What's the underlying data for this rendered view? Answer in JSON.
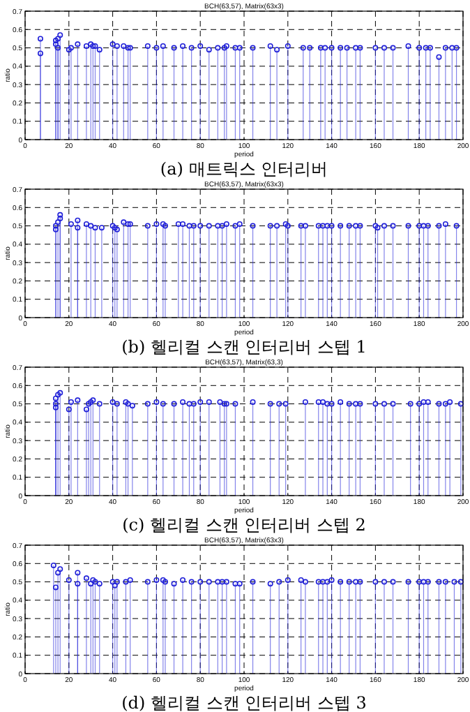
{
  "chart_data": [
    {
      "type": "lollipop",
      "title": "BCH(63,57), Matrix(63x3)",
      "xlabel": "period",
      "ylabel": "ratio",
      "annotations": [
        "(a) 매트릭스 인터리버"
      ],
      "color": "#1f1fd8",
      "marker": "circle",
      "grid": true,
      "xlim": [
        0,
        200
      ],
      "ylim": [
        0,
        0.7
      ],
      "xticks": [
        0,
        20,
        40,
        60,
        80,
        100,
        120,
        140,
        160,
        180,
        200
      ],
      "yticks": [
        0,
        0.1,
        0.2,
        0.3,
        0.4,
        0.5,
        0.6,
        0.7
      ],
      "x": [
        7,
        7,
        14,
        15,
        16,
        14,
        15,
        20,
        21,
        24,
        28,
        30,
        31,
        32,
        34,
        40,
        42,
        45,
        47,
        48,
        56,
        60,
        63,
        68,
        72,
        76,
        80,
        84,
        88,
        91,
        92,
        96,
        98,
        104,
        112,
        115,
        120,
        127,
        130,
        135,
        137,
        140,
        144,
        147,
        151,
        153,
        160,
        164,
        168,
        175,
        180,
        183,
        185,
        189,
        192,
        195,
        197
      ],
      "values": [
        0.55,
        0.47,
        0.54,
        0.55,
        0.57,
        0.52,
        0.5,
        0.49,
        0.5,
        0.52,
        0.51,
        0.52,
        0.51,
        0.51,
        0.49,
        0.52,
        0.51,
        0.51,
        0.5,
        0.5,
        0.51,
        0.5,
        0.51,
        0.5,
        0.51,
        0.5,
        0.51,
        0.49,
        0.5,
        0.5,
        0.51,
        0.5,
        0.5,
        0.5,
        0.51,
        0.49,
        0.51,
        0.5,
        0.5,
        0.5,
        0.5,
        0.5,
        0.5,
        0.5,
        0.5,
        0.5,
        0.5,
        0.5,
        0.5,
        0.51,
        0.5,
        0.5,
        0.5,
        0.45,
        0.5,
        0.5,
        0.5
      ]
    },
    {
      "type": "lollipop",
      "title": "BCH(63,57), Matrix(63x3)",
      "xlabel": "period",
      "ylabel": "ratio",
      "annotations": [
        "(b) 헬리컬 스캔 인터리버 스텝 1"
      ],
      "color": "#1f1fd8",
      "marker": "circle",
      "grid": true,
      "xlim": [
        0,
        200
      ],
      "ylim": [
        0,
        0.7
      ],
      "xticks": [
        0,
        20,
        40,
        60,
        80,
        100,
        120,
        140,
        160,
        180,
        200
      ],
      "yticks": [
        0,
        0.1,
        0.2,
        0.3,
        0.4,
        0.5,
        0.6,
        0.7
      ],
      "x": [
        14,
        14,
        15,
        16,
        16,
        21,
        24,
        24,
        28,
        30,
        32,
        35,
        40,
        41,
        42,
        45,
        47,
        48,
        56,
        60,
        63,
        64,
        70,
        72,
        75,
        77,
        80,
        84,
        88,
        90,
        92,
        96,
        98,
        104,
        112,
        115,
        119,
        120,
        126,
        128,
        134,
        136,
        138,
        140,
        144,
        148,
        151,
        153,
        160,
        161,
        164,
        168,
        175,
        180,
        182,
        184,
        189,
        192,
        197
      ],
      "values": [
        0.48,
        0.5,
        0.52,
        0.54,
        0.56,
        0.51,
        0.53,
        0.49,
        0.51,
        0.5,
        0.49,
        0.49,
        0.5,
        0.49,
        0.48,
        0.52,
        0.51,
        0.51,
        0.5,
        0.51,
        0.51,
        0.5,
        0.51,
        0.51,
        0.5,
        0.5,
        0.5,
        0.5,
        0.5,
        0.5,
        0.51,
        0.5,
        0.51,
        0.5,
        0.5,
        0.5,
        0.51,
        0.5,
        0.5,
        0.5,
        0.5,
        0.5,
        0.5,
        0.5,
        0.5,
        0.5,
        0.5,
        0.5,
        0.5,
        0.49,
        0.5,
        0.5,
        0.5,
        0.5,
        0.5,
        0.5,
        0.5,
        0.51,
        0.5
      ]
    },
    {
      "type": "lollipop",
      "title": "BCH(63,57), Matrix(63,3)",
      "xlabel": "period",
      "ylabel": "ratio",
      "annotations": [
        "(c) 헬리컬 스캔 인터리버 스텝 2"
      ],
      "color": "#1f1fd8",
      "marker": "circle",
      "grid": true,
      "xlim": [
        0,
        200
      ],
      "ylim": [
        0,
        0.7
      ],
      "xticks": [
        0,
        20,
        40,
        60,
        80,
        100,
        120,
        140,
        160,
        180,
        200
      ],
      "yticks": [
        0,
        0.1,
        0.2,
        0.3,
        0.4,
        0.5,
        0.6,
        0.7
      ],
      "x": [
        14,
        14,
        15,
        16,
        14,
        20,
        21,
        24,
        28,
        29,
        30,
        31,
        34,
        40,
        42,
        46,
        47,
        49,
        56,
        60,
        63,
        68,
        72,
        75,
        77,
        80,
        84,
        89,
        91,
        92,
        96,
        104,
        112,
        116,
        119,
        128,
        134,
        136,
        138,
        140,
        144,
        148,
        151,
        153,
        160,
        164,
        168,
        176,
        180,
        182,
        184,
        189,
        192,
        194,
        199
      ],
      "values": [
        0.5,
        0.53,
        0.55,
        0.56,
        0.48,
        0.47,
        0.51,
        0.52,
        0.47,
        0.5,
        0.51,
        0.52,
        0.5,
        0.51,
        0.5,
        0.51,
        0.5,
        0.49,
        0.5,
        0.51,
        0.5,
        0.5,
        0.51,
        0.5,
        0.5,
        0.51,
        0.51,
        0.51,
        0.5,
        0.5,
        0.5,
        0.51,
        0.5,
        0.5,
        0.5,
        0.51,
        0.51,
        0.51,
        0.5,
        0.5,
        0.51,
        0.5,
        0.5,
        0.5,
        0.5,
        0.5,
        0.5,
        0.5,
        0.5,
        0.51,
        0.51,
        0.5,
        0.5,
        0.51,
        0.5
      ]
    },
    {
      "type": "lollipop",
      "title": "BCH(63,57), Matrix(63x3)",
      "xlabel": "period",
      "ylabel": "ratio",
      "annotations": [
        "(d) 헬리컬 스캔 인터리버 스텝 3"
      ],
      "color": "#1f1fd8",
      "marker": "circle",
      "grid": true,
      "xlim": [
        0,
        200
      ],
      "ylim": [
        0,
        0.7
      ],
      "xticks": [
        0,
        20,
        40,
        60,
        80,
        100,
        120,
        140,
        160,
        180,
        200
      ],
      "yticks": [
        0,
        0.1,
        0.2,
        0.3,
        0.4,
        0.5,
        0.6,
        0.7
      ],
      "x": [
        13,
        14,
        15,
        16,
        20,
        24,
        24,
        28,
        30,
        31,
        32,
        34,
        40,
        41,
        42,
        46,
        48,
        56,
        60,
        63,
        64,
        68,
        72,
        76,
        80,
        84,
        88,
        90,
        92,
        96,
        98,
        104,
        112,
        116,
        120,
        126,
        128,
        134,
        136,
        138,
        140,
        144,
        148,
        151,
        153,
        160,
        164,
        168,
        175,
        180,
        182,
        184,
        189,
        192,
        196,
        199
      ],
      "values": [
        0.59,
        0.47,
        0.55,
        0.57,
        0.51,
        0.55,
        0.49,
        0.52,
        0.49,
        0.51,
        0.5,
        0.49,
        0.5,
        0.48,
        0.5,
        0.5,
        0.51,
        0.5,
        0.51,
        0.51,
        0.5,
        0.49,
        0.51,
        0.5,
        0.5,
        0.5,
        0.5,
        0.5,
        0.5,
        0.49,
        0.49,
        0.5,
        0.49,
        0.5,
        0.51,
        0.51,
        0.5,
        0.5,
        0.5,
        0.5,
        0.51,
        0.5,
        0.5,
        0.5,
        0.5,
        0.5,
        0.5,
        0.5,
        0.5,
        0.5,
        0.5,
        0.5,
        0.5,
        0.5,
        0.5,
        0.5
      ]
    }
  ]
}
